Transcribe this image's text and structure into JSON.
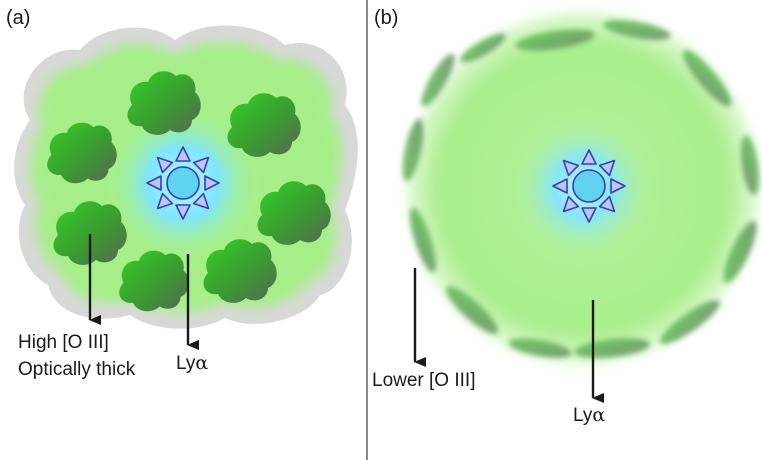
{
  "panels": [
    {
      "label": "(a)",
      "annotations": {
        "oiii_line1": "High [O III]",
        "oiii_line2": "Optically thick",
        "lya_prefix": "Ly",
        "lya_greek": "α"
      }
    },
    {
      "label": "(b)",
      "annotations": {
        "oiii": "Lower [O III]",
        "lya_prefix": "Ly",
        "lya_greek": "α"
      }
    }
  ],
  "icons": {
    "central_source": "star-icon",
    "cloud": "gas-cloud-icon"
  },
  "colors": {
    "halo_grey": "#d6d6d6",
    "nebula_green": "#a8ef8c",
    "core_cyan": "#7fe6ff",
    "cloud_green": "#3fbf2f",
    "cloud_dark": "#4a5a4a",
    "star_fill": "#5fd3f0",
    "ray_fill": "#b9c6ff",
    "ray_stroke": "#3a3fa8",
    "arrow": "#1a1a1a",
    "divider": "#8a8a8a"
  }
}
